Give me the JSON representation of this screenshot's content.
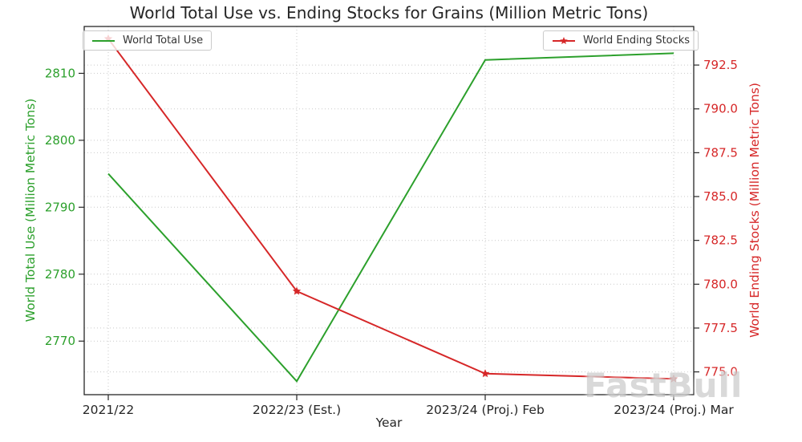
{
  "watermark": "FastBull",
  "chart_data": {
    "type": "line",
    "title": "World Total Use vs. Ending Stocks for Grains (Million Metric Tons)",
    "xlabel": "Year",
    "categories": [
      "2021/22",
      "2022/23 (Est.)",
      "2023/24 (Proj.) Feb",
      "2023/24 (Proj.) Mar"
    ],
    "series": [
      {
        "name": "World Total Use",
        "axis": "left",
        "color": "#2ca02c",
        "marker": "none",
        "values": [
          2795,
          2764,
          2812,
          2813
        ]
      },
      {
        "name": "World Ending Stocks",
        "axis": "right",
        "color": "#d62728",
        "marker": "star",
        "values": [
          794.0,
          779.6,
          774.9,
          774.6
        ]
      }
    ],
    "left_axis": {
      "label": "World Total Use (Million Metric Tons)",
      "color": "#2ca02c",
      "ticks": [
        "2770",
        "2780",
        "2790",
        "2800",
        "2810"
      ],
      "ylim": [
        2762,
        2817
      ]
    },
    "right_axis": {
      "label": "World Ending Stocks (Million Metric Tons)",
      "color": "#d62728",
      "ticks": [
        "775.0",
        "777.5",
        "780.0",
        "782.5",
        "785.0",
        "787.5",
        "790.0",
        "792.5"
      ],
      "ylim": [
        773.7,
        794.7
      ]
    },
    "grid": true,
    "legend_positions": [
      "upper left",
      "upper right"
    ]
  }
}
